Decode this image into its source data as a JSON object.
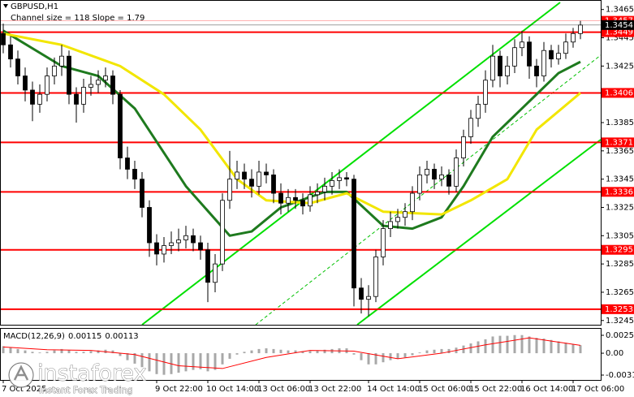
{
  "chart_data": {
    "type": "candlestick",
    "title": "GBPUSD,H1",
    "subtitle": "Channel size = 118 Slope = 1.79",
    "categories": [
      "7 Oct 2025",
      null,
      null,
      null,
      null,
      null,
      null,
      null,
      null,
      null,
      null,
      null,
      null,
      null,
      null,
      null,
      null,
      null,
      null,
      null,
      null,
      "9 Oct 22:00",
      null,
      null,
      null,
      null,
      null,
      null,
      "10 Oct 14:00",
      null,
      null,
      null,
      null,
      null,
      null,
      "13 Oct 06:00",
      null,
      null,
      null,
      null,
      null,
      null,
      "13 Oct 22:00",
      null,
      null,
      null,
      null,
      null,
      null,
      null,
      "14 Oct 14:00",
      null,
      null,
      null,
      null,
      null,
      null,
      "15 Oct 06:00",
      null,
      null,
      null,
      null,
      null,
      null,
      "15 Oct 22:00",
      null,
      null,
      null,
      null,
      null,
      null,
      "16 Oct 14:00",
      null,
      null,
      null,
      null,
      null,
      null,
      "17 Oct 06:00",
      null
    ],
    "open": [
      1.3448,
      1.344,
      1.343,
      1.3418,
      1.3408,
      1.3398,
      1.3405,
      1.3418,
      1.3425,
      1.3432,
      1.3405,
      1.3398,
      1.341,
      1.3412,
      1.3415,
      1.3418,
      1.3405,
      1.336,
      1.3352,
      1.3345,
      1.3325,
      1.33,
      1.3292,
      1.3298,
      1.33,
      1.3302,
      1.3305,
      1.33,
      1.3295,
      1.3272,
      1.3285,
      1.333,
      1.3345,
      1.335,
      1.3345,
      1.334,
      1.335,
      1.3348,
      1.3335,
      1.3328,
      1.3332,
      1.333,
      1.3326,
      1.3334,
      1.3336,
      1.334,
      1.3344,
      1.3346,
      1.3345,
      1.3268,
      1.326,
      1.3262,
      1.329,
      1.331,
      1.3315,
      1.3318,
      1.3322,
      1.3335,
      1.3348,
      1.3352,
      1.3345,
      1.3348,
      1.334,
      1.336,
      1.3375,
      1.3388,
      1.3398,
      1.3415,
      1.3432,
      1.3418,
      1.3425,
      1.3438,
      1.3442,
      1.3425,
      1.3418,
      1.3436,
      1.343,
      1.3434,
      1.3442,
      1.3448
    ],
    "high": [
      1.3455,
      1.3446,
      1.3436,
      1.3424,
      1.3414,
      1.3412,
      1.3424,
      1.3431,
      1.344,
      1.3436,
      1.341,
      1.3416,
      1.3418,
      1.3422,
      1.3424,
      1.3422,
      1.3408,
      1.3368,
      1.3358,
      1.335,
      1.333,
      1.3306,
      1.3304,
      1.3308,
      1.331,
      1.3312,
      1.331,
      1.3305,
      1.33,
      1.3292,
      1.3335,
      1.3365,
      1.3358,
      1.3356,
      1.3352,
      1.3358,
      1.3356,
      1.3352,
      1.3342,
      1.3338,
      1.3338,
      1.3335,
      1.334,
      1.3342,
      1.3346,
      1.335,
      1.3352,
      1.335,
      1.3348,
      1.3275,
      1.327,
      1.3295,
      1.3316,
      1.3322,
      1.3324,
      1.3328,
      1.334,
      1.3354,
      1.3358,
      1.3356,
      1.3354,
      1.3352,
      1.3366,
      1.338,
      1.3394,
      1.3404,
      1.3422,
      1.344,
      1.3436,
      1.3432,
      1.3444,
      1.345,
      1.3446,
      1.343,
      1.3442,
      1.344,
      1.344,
      1.3448,
      1.3452,
      1.3457
    ],
    "low": [
      1.3434,
      1.3424,
      1.3412,
      1.34,
      1.3386,
      1.3392,
      1.34,
      1.3412,
      1.3418,
      1.3398,
      1.3385,
      1.3392,
      1.3404,
      1.3406,
      1.341,
      1.3398,
      1.3352,
      1.3345,
      1.3338,
      1.3318,
      1.329,
      1.3284,
      1.3286,
      1.3292,
      1.3294,
      1.3296,
      1.3294,
      1.3288,
      1.3258,
      1.3265,
      1.328,
      1.3324,
      1.3338,
      1.3338,
      1.3332,
      1.3334,
      1.3342,
      1.3328,
      1.332,
      1.3322,
      1.3324,
      1.332,
      1.3322,
      1.3328,
      1.333,
      1.3334,
      1.3338,
      1.334,
      1.3255,
      1.325,
      1.3248,
      1.3258,
      1.3284,
      1.3304,
      1.331,
      1.3312,
      1.3316,
      1.333,
      1.3342,
      1.3338,
      1.334,
      1.3334,
      1.3336,
      1.3354,
      1.337,
      1.3382,
      1.3392,
      1.341,
      1.341,
      1.3412,
      1.342,
      1.3432,
      1.3416,
      1.341,
      1.3414,
      1.3424,
      1.3426,
      1.343,
      1.3438,
      1.3444
    ],
    "close": [
      1.344,
      1.343,
      1.3418,
      1.3408,
      1.3398,
      1.3405,
      1.3418,
      1.3425,
      1.3432,
      1.3405,
      1.3398,
      1.341,
      1.3412,
      1.3415,
      1.3418,
      1.3405,
      1.336,
      1.3352,
      1.3345,
      1.3325,
      1.33,
      1.3292,
      1.3298,
      1.33,
      1.3302,
      1.3305,
      1.33,
      1.3295,
      1.3272,
      1.3285,
      1.333,
      1.3345,
      1.335,
      1.3345,
      1.334,
      1.335,
      1.3348,
      1.3335,
      1.3328,
      1.3332,
      1.333,
      1.3326,
      1.3334,
      1.3336,
      1.334,
      1.3344,
      1.3346,
      1.3345,
      1.3268,
      1.326,
      1.3262,
      1.329,
      1.331,
      1.3315,
      1.3318,
      1.3322,
      1.3335,
      1.3348,
      1.3352,
      1.3345,
      1.3348,
      1.334,
      1.336,
      1.3375,
      1.3388,
      1.3398,
      1.3415,
      1.3432,
      1.3418,
      1.3425,
      1.3438,
      1.3442,
      1.3425,
      1.3418,
      1.3436,
      1.343,
      1.3434,
      1.3442,
      1.3448,
      1.3454
    ],
    "up_color": "#ffffff",
    "down_color": "#000000",
    "ylim": [
      1.3242,
      1.347
    ],
    "yticks": [
      1.3465,
      1.3445,
      1.3425,
      1.3385,
      1.3365,
      1.3345,
      1.3325,
      1.3305,
      1.3285,
      1.3265,
      1.3245
    ],
    "moving_averages": [
      {
        "color": "#1e7a1e",
        "x": [
          0,
          8,
          13,
          18,
          25,
          31,
          34,
          38,
          44,
          47,
          52,
          56,
          60,
          63,
          67,
          72,
          76,
          79
        ],
        "values": [
          1.345,
          1.3425,
          1.3418,
          1.3395,
          1.334,
          1.3305,
          1.3308,
          1.3325,
          1.3336,
          1.3336,
          1.3312,
          1.331,
          1.3318,
          1.334,
          1.3375,
          1.34,
          1.342,
          1.3428
        ]
      },
      {
        "color": "#f2e600",
        "x": [
          0,
          8,
          16,
          22,
          27,
          32,
          36,
          42,
          47,
          52,
          60,
          64,
          69,
          73,
          79
        ],
        "values": [
          1.3448,
          1.344,
          1.3425,
          1.3405,
          1.338,
          1.3345,
          1.333,
          1.3328,
          1.3335,
          1.3322,
          1.332,
          1.333,
          1.3345,
          1.338,
          1.3406
        ]
      }
    ],
    "levels": {
      "color": "#ff0000",
      "values": [
        1.3449,
        1.3406,
        1.3371,
        1.3336,
        1.3295,
        1.3253
      ]
    },
    "price_marks": [
      {
        "value": 1.3457,
        "color": "#ff0000"
      },
      {
        "value": 1.3454,
        "color": "#000000"
      }
    ],
    "macd": {
      "label": "MACD(12,26,9)",
      "macd_value": 0.00115,
      "signal_value": 0.00113,
      "color": "#a8a8a8",
      "values": [
        0.001,
        0.0008,
        0.0006,
        0.0004,
        0.0002,
        0.0001,
        0.0002,
        0.0004,
        0.0006,
        0.0004,
        0.0002,
        0.0002,
        0.0003,
        0.0004,
        0.0005,
        0.0004,
        -0.0004,
        -0.001,
        -0.0015,
        -0.002,
        -0.0026,
        -0.003,
        -0.0031,
        -0.003,
        -0.0028,
        -0.0026,
        -0.0024,
        -0.0023,
        -0.0026,
        -0.0024,
        -0.0016,
        -0.0008,
        -0.0002,
        0.0002,
        0.0004,
        0.0006,
        0.0007,
        0.0006,
        0.0005,
        0.0004,
        0.0004,
        0.0003,
        0.0003,
        0.0004,
        0.0005,
        0.0006,
        0.0007,
        0.0007,
        -0.0002,
        -0.001,
        -0.0016,
        -0.0016,
        -0.0013,
        -0.001,
        -0.0008,
        -0.0006,
        -0.0003,
        0.0001,
        0.0004,
        0.0005,
        0.0006,
        0.0006,
        0.0008,
        0.0011,
        0.0014,
        0.0017,
        0.002,
        0.0024,
        0.0025,
        0.0025,
        0.0026,
        0.0026,
        0.0024,
        0.0022,
        0.0021,
        0.0019,
        0.0017,
        0.0015,
        0.0013,
        0.00115
      ],
      "signal": {
        "color": "#ff0000",
        "x": [
          0,
          6,
          12,
          18,
          24,
          30,
          36,
          42,
          48,
          54,
          60,
          66,
          72,
          79
        ],
        "values": [
          0.0009,
          0.0005,
          0.0004,
          -0.0002,
          -0.0018,
          -0.0022,
          -0.0006,
          0.0004,
          0.0003,
          -0.0008,
          0.0,
          0.0012,
          0.0022,
          0.00113
        ]
      },
      "ylim": [
        -0.00314,
        0.00257
      ],
      "yticks": [
        0.00257,
        {
          "value": 0,
          "label": "0.00"
        },
        -0.00314
      ]
    }
  },
  "watermark": {
    "brand": "instaforex",
    "tagline": "Instant Forex Trading"
  }
}
